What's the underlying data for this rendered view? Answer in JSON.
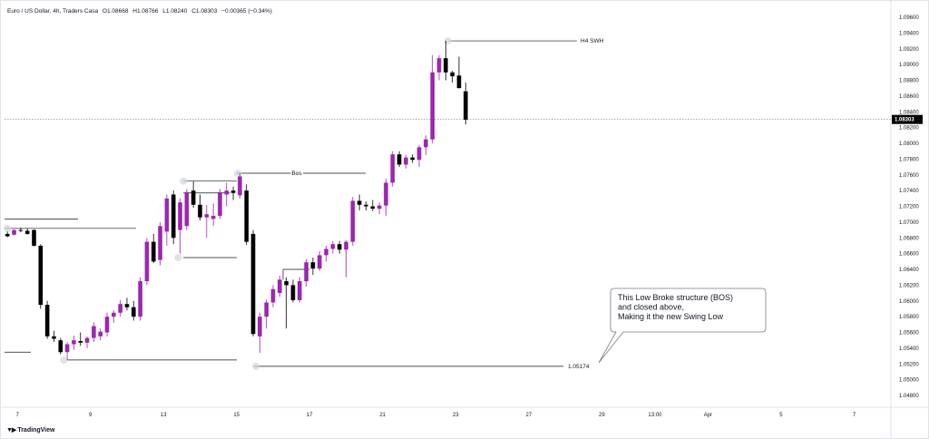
{
  "header": {
    "symbol": "Euro / US Dollar, 4h, Traders Casa",
    "open": "O1.08668",
    "high": "H1.08766",
    "low": "L1.08240",
    "close": "C1.08303",
    "change": "−0.00365 (−0.34%)"
  },
  "brand": "TradingView",
  "colors": {
    "bull": "#9c27b0",
    "bear": "#000000",
    "line": "#131722",
    "marker": "#d1d4dc"
  },
  "chart_data": {
    "type": "candlestick",
    "symbol": "EURUSD",
    "timeframe": "4h",
    "current_price": "1.08303",
    "y_ticks": [
      "1.09600",
      "1.09400",
      "1.09200",
      "1.09000",
      "1.08800",
      "1.08600",
      "1.08400",
      "1.08200",
      "1.08000",
      "1.07800",
      "1.07600",
      "1.07400",
      "1.07200",
      "1.07000",
      "1.06800",
      "1.06600",
      "1.06400",
      "1.06200",
      "1.06000",
      "1.05800",
      "1.05600",
      "1.05400",
      "1.05200",
      "1.05000",
      "1.04800"
    ],
    "x_ticks": [
      {
        "label": "7",
        "t": 1.5
      },
      {
        "label": "9",
        "t": 12.5
      },
      {
        "label": "13",
        "t": 23.5
      },
      {
        "label": "15",
        "t": 34.5
      },
      {
        "label": "17",
        "t": 45.5
      },
      {
        "label": "21",
        "t": 56.5
      },
      {
        "label": "23",
        "t": 67.5
      },
      {
        "label": "27",
        "t": 78.5
      },
      {
        "label": "29",
        "t": 89.5
      },
      {
        "label": "13:00",
        "t": 97.5
      },
      {
        "label": "Apr",
        "t": 105.5
      },
      {
        "label": "5",
        "t": 116.5
      },
      {
        "label": "7",
        "t": 127.5
      }
    ],
    "ohlc": [
      [
        1.0685,
        1.0688,
        1.0681,
        1.0682
      ],
      [
        1.0684,
        1.0691,
        1.0683,
        1.069
      ],
      [
        1.069,
        1.0693,
        1.0687,
        1.0689
      ],
      [
        1.0689,
        1.0692,
        1.0684,
        1.0685
      ],
      [
        1.069,
        1.0691,
        1.0669,
        1.067
      ],
      [
        1.067,
        1.0672,
        1.059,
        1.0595
      ],
      [
        1.0595,
        1.06,
        1.0552,
        1.0555
      ],
      [
        1.0555,
        1.0562,
        1.0548,
        1.0552
      ],
      [
        1.055,
        1.0553,
        1.0532,
        1.0535
      ],
      [
        1.0535,
        1.0548,
        1.0525,
        1.0545
      ],
      [
        1.0545,
        1.0556,
        1.0538,
        1.055
      ],
      [
        1.0549,
        1.056,
        1.0543,
        1.0547
      ],
      [
        1.0547,
        1.0555,
        1.054,
        1.0553
      ],
      [
        1.0553,
        1.0573,
        1.0548,
        1.0568
      ],
      [
        1.0555,
        1.0565,
        1.055,
        1.0561
      ],
      [
        1.056,
        1.0585,
        1.0555,
        1.058
      ],
      [
        1.058,
        1.0588,
        1.0572,
        1.0585
      ],
      [
        1.0585,
        1.0601,
        1.058,
        1.0596
      ],
      [
        1.0596,
        1.0604,
        1.0588,
        1.0592
      ],
      [
        1.0592,
        1.06,
        1.0575,
        1.058
      ],
      [
        1.058,
        1.063,
        1.0575,
        1.0625
      ],
      [
        1.0625,
        1.068,
        1.062,
        1.0675
      ],
      [
        1.0675,
        1.0685,
        1.0648,
        1.065
      ],
      [
        1.0652,
        1.07,
        1.0645,
        1.0695
      ],
      [
        1.0688,
        1.0735,
        1.067,
        1.073
      ],
      [
        1.0735,
        1.074,
        1.0672,
        1.068
      ],
      [
        1.069,
        1.073,
        1.066,
        1.0725
      ],
      [
        1.0695,
        1.0742,
        1.069,
        1.0738
      ],
      [
        1.074,
        1.0752,
        1.0718,
        1.0722
      ],
      [
        1.0722,
        1.0735,
        1.0702,
        1.0706
      ],
      [
        1.0706,
        1.0722,
        1.068,
        1.071
      ],
      [
        1.0704,
        1.0724,
        1.0695,
        1.0708
      ],
      [
        1.0708,
        1.0742,
        1.0704,
        1.0738
      ],
      [
        1.0735,
        1.075,
        1.072,
        1.074
      ],
      [
        1.074,
        1.0745,
        1.0728,
        1.0737
      ],
      [
        1.0734,
        1.0762,
        1.073,
        1.0758
      ],
      [
        1.074,
        1.0748,
        1.0671,
        1.0675
      ],
      [
        1.0685,
        1.069,
        1.0555,
        1.0558
      ],
      [
        1.0555,
        1.0585,
        1.0534,
        1.058
      ],
      [
        1.058,
        1.0602,
        1.0565,
        1.0598
      ],
      [
        1.0598,
        1.062,
        1.0592,
        1.0615
      ],
      [
        1.061,
        1.0632,
        1.0605,
        1.0627
      ],
      [
        1.0625,
        1.063,
        1.0565,
        1.062
      ],
      [
        1.062,
        1.0627,
        1.0598,
        1.0601
      ],
      [
        1.0601,
        1.063,
        1.0598,
        1.0625
      ],
      [
        1.0625,
        1.0653,
        1.0618,
        1.0649
      ],
      [
        1.0649,
        1.0655,
        1.0633,
        1.0641
      ],
      [
        1.0641,
        1.0663,
        1.0638,
        1.0658
      ],
      [
        1.0658,
        1.067,
        1.065,
        1.0666
      ],
      [
        1.0666,
        1.0676,
        1.066,
        1.0672
      ],
      [
        1.0672,
        1.0676,
        1.066,
        1.0665
      ],
      [
        1.0665,
        1.0677,
        1.063,
        1.0675
      ],
      [
        1.0675,
        1.0732,
        1.067,
        1.0727
      ],
      [
        1.0727,
        1.0735,
        1.0715,
        1.0722
      ],
      [
        1.0722,
        1.0726,
        1.0715,
        1.072
      ],
      [
        1.072,
        1.0728,
        1.0714,
        1.0717
      ],
      [
        1.0717,
        1.0725,
        1.071,
        1.0721
      ],
      [
        1.0721,
        1.0755,
        1.0708,
        1.075
      ],
      [
        1.075,
        1.079,
        1.0745,
        1.0786
      ],
      [
        1.0786,
        1.079,
        1.077,
        1.0773
      ],
      [
        1.0773,
        1.0785,
        1.0768,
        1.0782
      ],
      [
        1.0782,
        1.0786,
        1.0775,
        1.0779
      ],
      [
        1.0779,
        1.0798,
        1.077,
        1.0795
      ],
      [
        1.0795,
        1.081,
        1.0785,
        1.0805
      ],
      [
        1.0805,
        1.0912,
        1.08,
        1.089
      ],
      [
        1.089,
        1.0912,
        1.088,
        1.0908
      ],
      [
        1.0908,
        1.093,
        1.088,
        1.089
      ],
      [
        1.089,
        1.0892,
        1.0877,
        1.0885
      ],
      [
        1.0886,
        1.091,
        1.087,
        1.087
      ],
      [
        1.0866,
        1.0877,
        1.0824,
        1.083
      ]
    ],
    "annotations": {
      "h4_swh": "H4 SWH",
      "bos": "Bos",
      "low_price": "1.05174",
      "note_lines": [
        "This Low Broke structure (BOS)",
        "and closed above,",
        "Making it the new Swing Low"
      ]
    }
  }
}
